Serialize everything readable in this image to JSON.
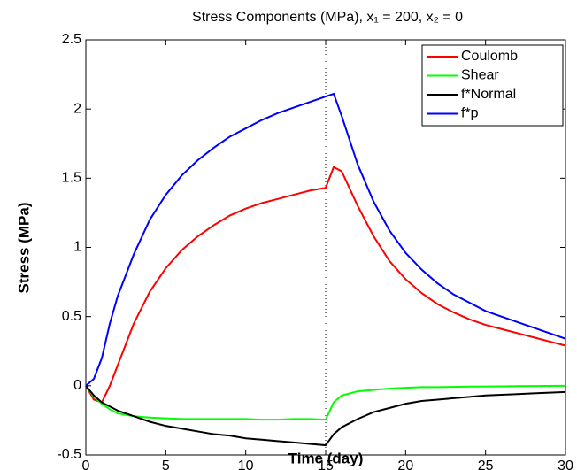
{
  "chart_data": {
    "type": "line",
    "title": "Stress Components (MPa), x₁ = 200, x₂ = 0",
    "xlabel": "Time (day)",
    "ylabel": "Stress (MPa)",
    "x": [
      0,
      0.5,
      1,
      1.5,
      2,
      3,
      4,
      5,
      6,
      7,
      8,
      9,
      10,
      11,
      12,
      13,
      14,
      15,
      15.5,
      16,
      17,
      18,
      19,
      20,
      21,
      22,
      23,
      24,
      25,
      26,
      27,
      28,
      29,
      30
    ],
    "series": [
      {
        "name": "Coulomb",
        "color": "#ff0000",
        "values": [
          0,
          -0.1,
          -0.12,
          0,
          0.15,
          0.45,
          0.68,
          0.85,
          0.98,
          1.08,
          1.16,
          1.23,
          1.28,
          1.32,
          1.35,
          1.38,
          1.41,
          1.43,
          1.58,
          1.55,
          1.3,
          1.08,
          0.9,
          0.77,
          0.67,
          0.59,
          0.53,
          0.48,
          0.44,
          0.41,
          0.38,
          0.35,
          0.32,
          0.29
        ]
      },
      {
        "name": "Shear",
        "color": "#00ff00",
        "values": [
          0,
          -0.08,
          -0.13,
          -0.17,
          -0.2,
          -0.22,
          -0.23,
          -0.235,
          -0.24,
          -0.24,
          -0.24,
          -0.24,
          -0.24,
          -0.245,
          -0.245,
          -0.24,
          -0.24,
          -0.245,
          -0.12,
          -0.07,
          -0.04,
          -0.03,
          -0.02,
          -0.015,
          -0.01,
          -0.01,
          -0.008,
          -0.006,
          -0.005,
          -0.004,
          -0.003,
          -0.002,
          -0.001,
          0
        ]
      },
      {
        "name": "f*Normal",
        "color": "#000000",
        "values": [
          0,
          -0.07,
          -0.12,
          -0.15,
          -0.18,
          -0.22,
          -0.26,
          -0.29,
          -0.31,
          -0.33,
          -0.35,
          -0.36,
          -0.38,
          -0.39,
          -0.4,
          -0.41,
          -0.42,
          -0.43,
          -0.35,
          -0.3,
          -0.24,
          -0.19,
          -0.16,
          -0.13,
          -0.11,
          -0.1,
          -0.09,
          -0.08,
          -0.07,
          -0.065,
          -0.06,
          -0.055,
          -0.05,
          -0.045
        ]
      },
      {
        "name": "f*p",
        "color": "#0000ff",
        "values": [
          0,
          0.05,
          0.2,
          0.45,
          0.65,
          0.95,
          1.2,
          1.38,
          1.52,
          1.63,
          1.72,
          1.8,
          1.86,
          1.92,
          1.97,
          2.01,
          2.05,
          2.09,
          2.11,
          1.95,
          1.6,
          1.33,
          1.12,
          0.96,
          0.84,
          0.74,
          0.66,
          0.6,
          0.54,
          0.5,
          0.46,
          0.42,
          0.38,
          0.34
        ]
      }
    ],
    "xlim": [
      0,
      30
    ],
    "xticks": [
      0,
      5,
      10,
      15,
      20,
      25,
      30
    ],
    "ylim": [
      -0.5,
      2.5
    ],
    "yticks": [
      -0.5,
      0,
      0.5,
      1,
      1.5,
      2,
      2.5
    ],
    "vline_x": 15,
    "legend": "top-right",
    "grid": false
  }
}
